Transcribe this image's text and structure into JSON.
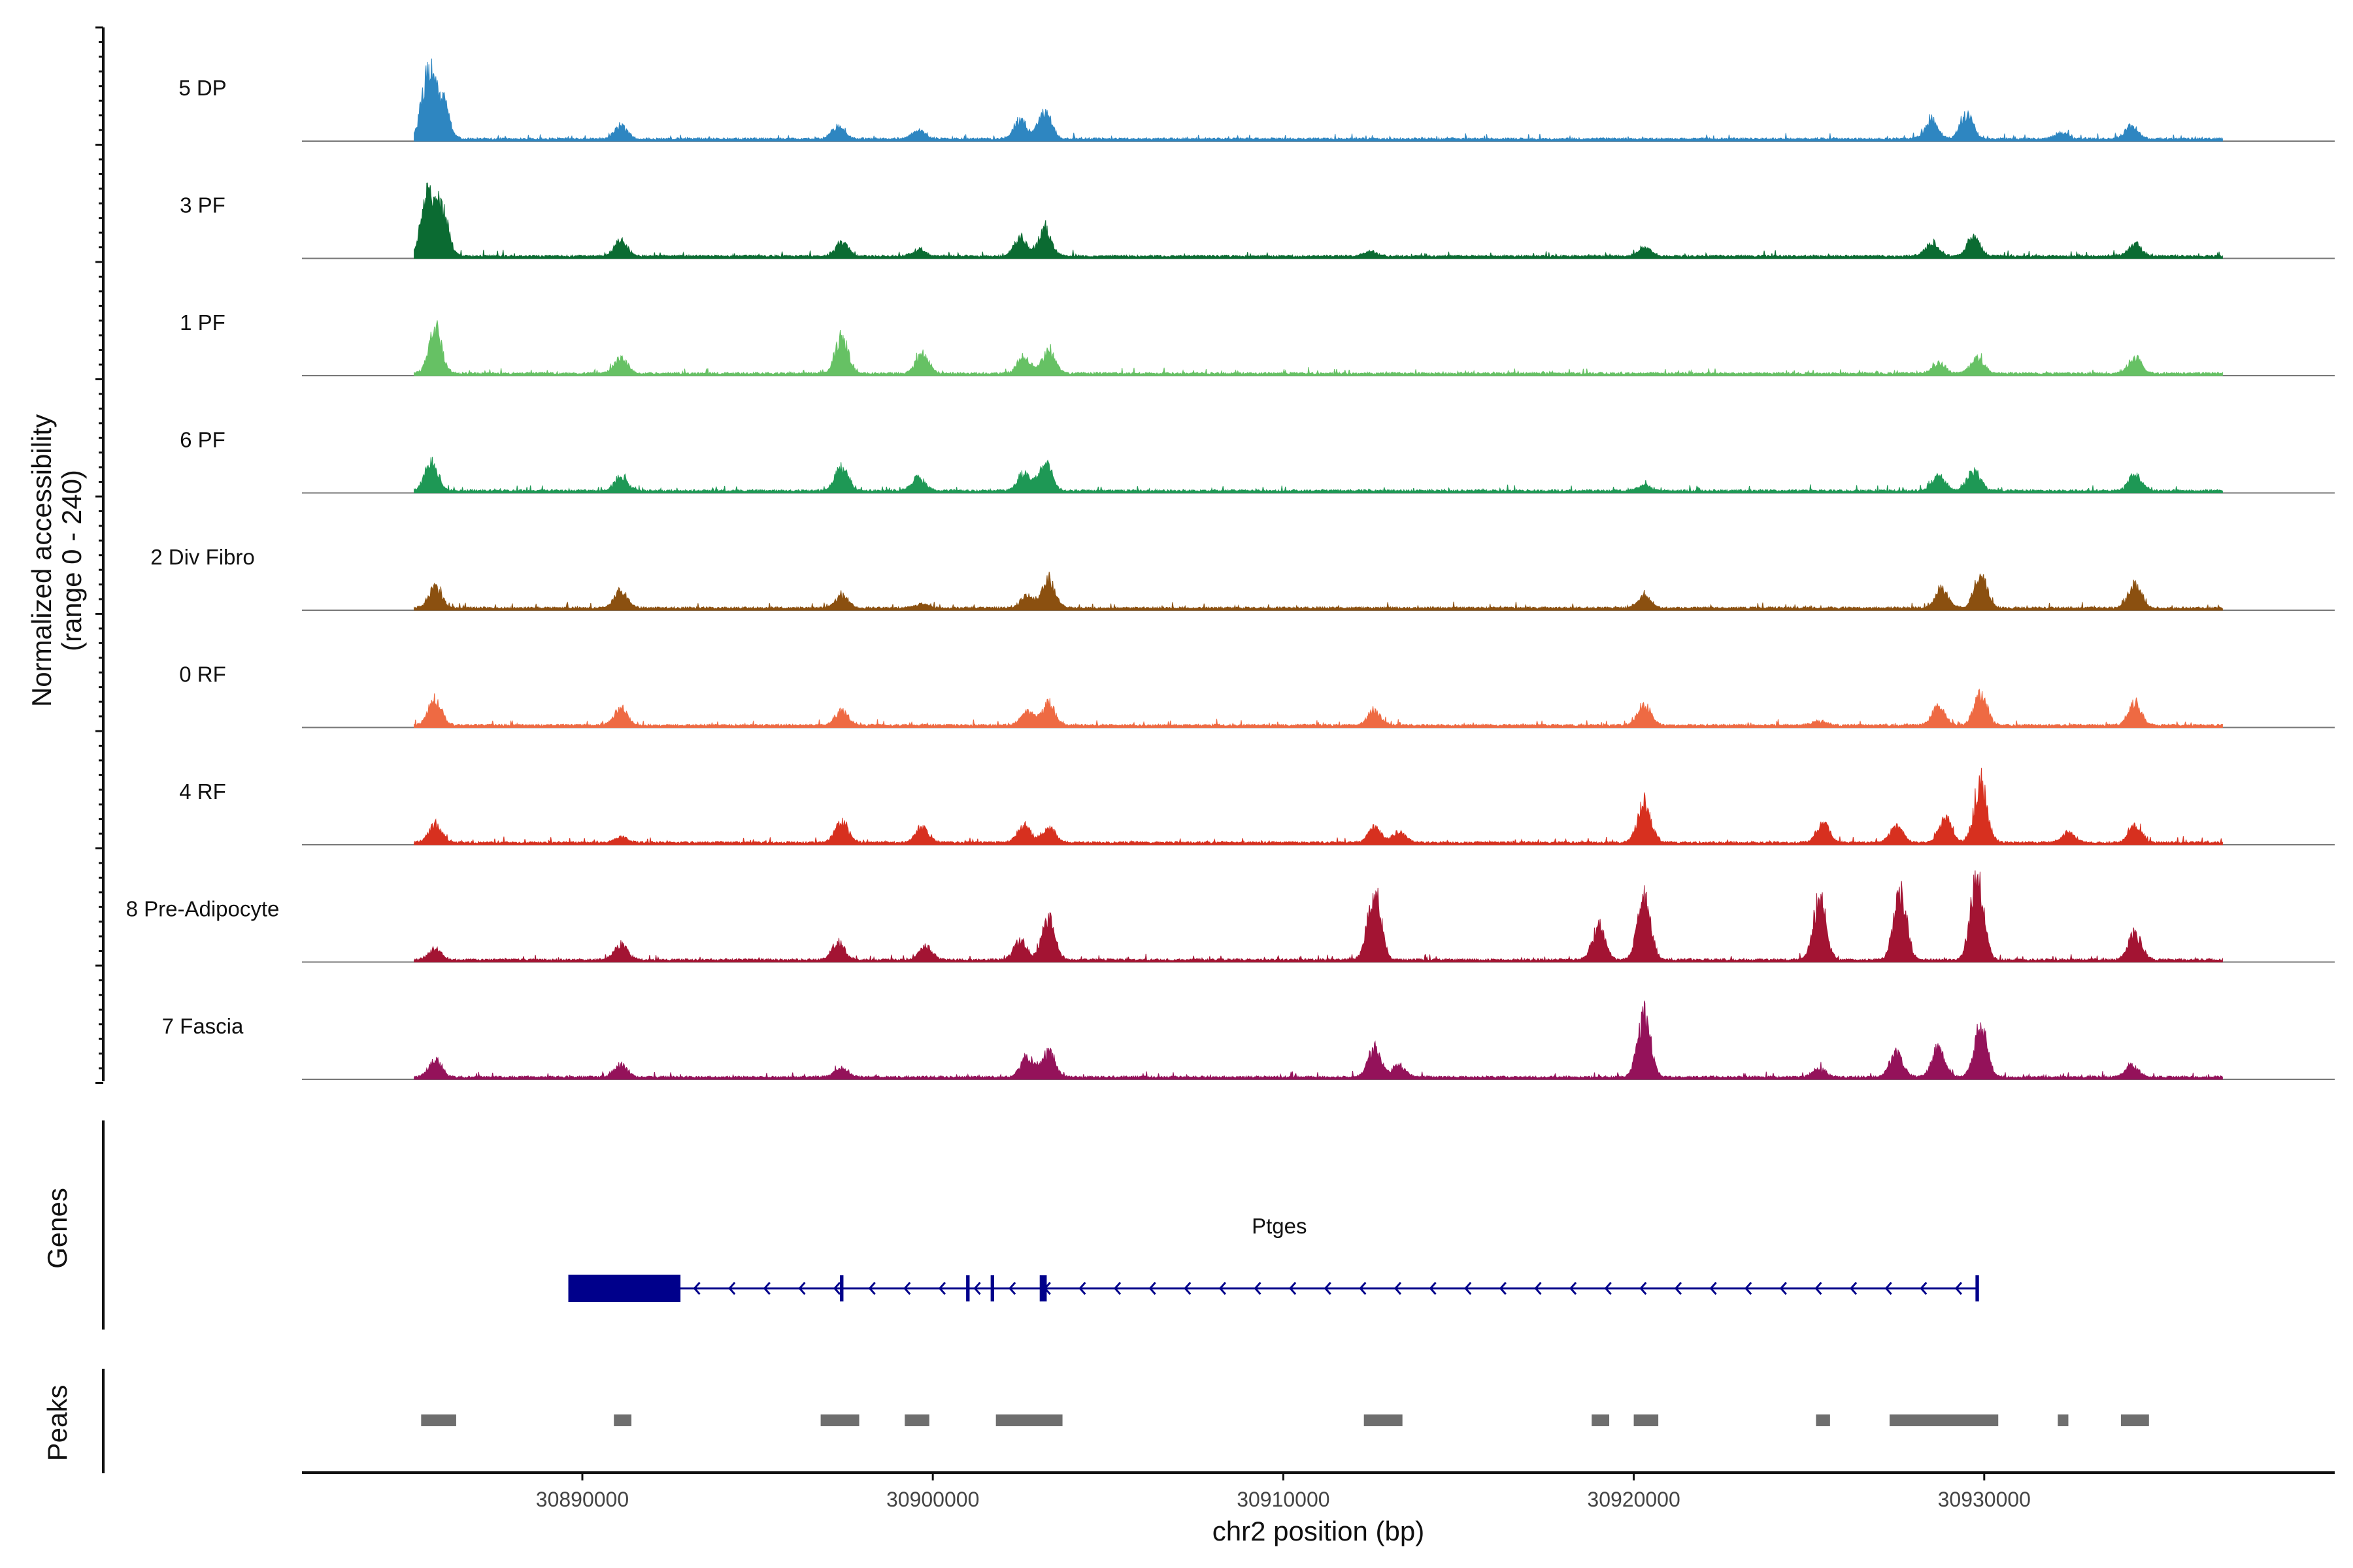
{
  "chart_data": {
    "type": "area",
    "title": "",
    "chromosome": "chr2",
    "xlabel": "chr2 position (bp)",
    "ylabel": "Normalized accessibility",
    "ylabel_range": "(range 0 - 240)",
    "xlim": [
      30882000,
      30940000
    ],
    "ylim": [
      0,
      240
    ],
    "xticks": [
      30890000,
      30900000,
      30910000,
      30920000,
      30930000
    ],
    "xtick_labels": [
      "30890000",
      "30900000",
      "30910000",
      "30920000",
      "30930000"
    ],
    "panel_labels": {
      "genes": "Genes",
      "peaks": "Peaks"
    },
    "tracks": [
      {
        "name": "5 DP",
        "color": "#2E86C1",
        "peaks": [
          [
            30885600,
            0.75
          ],
          [
            30886000,
            0.45
          ],
          [
            30891100,
            0.15
          ],
          [
            30897300,
            0.14
          ],
          [
            30899600,
            0.1
          ],
          [
            30902500,
            0.22
          ],
          [
            30903200,
            0.32
          ],
          [
            30928500,
            0.22
          ],
          [
            30929500,
            0.28
          ],
          [
            30932200,
            0.07
          ],
          [
            30934200,
            0.15
          ]
        ]
      },
      {
        "name": "3 PF",
        "color": "#0B6B32",
        "peaks": [
          [
            30885600,
            0.7
          ],
          [
            30886000,
            0.5
          ],
          [
            30891100,
            0.18
          ],
          [
            30897400,
            0.16
          ],
          [
            30899600,
            0.07
          ],
          [
            30902500,
            0.2
          ],
          [
            30903200,
            0.3
          ],
          [
            30912500,
            0.05
          ],
          [
            30920300,
            0.1
          ],
          [
            30928500,
            0.16
          ],
          [
            30929700,
            0.22
          ],
          [
            30934300,
            0.14
          ]
        ]
      },
      {
        "name": "1 PF",
        "color": "#66C164",
        "peaks": [
          [
            30885800,
            0.5
          ],
          [
            30891100,
            0.18
          ],
          [
            30897400,
            0.42
          ],
          [
            30899700,
            0.22
          ],
          [
            30902600,
            0.2
          ],
          [
            30903300,
            0.26
          ],
          [
            30928700,
            0.12
          ],
          [
            30929800,
            0.18
          ],
          [
            30934300,
            0.18
          ]
        ]
      },
      {
        "name": "6 PF",
        "color": "#1E9855",
        "peaks": [
          [
            30885700,
            0.34
          ],
          [
            30891100,
            0.16
          ],
          [
            30897400,
            0.28
          ],
          [
            30899600,
            0.16
          ],
          [
            30902600,
            0.2
          ],
          [
            30903200,
            0.34
          ],
          [
            30920300,
            0.06
          ],
          [
            30928700,
            0.18
          ],
          [
            30929700,
            0.24
          ],
          [
            30934300,
            0.18
          ]
        ]
      },
      {
        "name": "2 Div Fibro",
        "color": "#8B5010",
        "peaks": [
          [
            30885800,
            0.24
          ],
          [
            30891100,
            0.2
          ],
          [
            30897400,
            0.16
          ],
          [
            30899700,
            0.05
          ],
          [
            30902700,
            0.14
          ],
          [
            30903300,
            0.34
          ],
          [
            30920300,
            0.14
          ],
          [
            30928800,
            0.22
          ],
          [
            30929900,
            0.38
          ],
          [
            30934300,
            0.28
          ]
        ]
      },
      {
        "name": "0 RF",
        "color": "#EE6A43",
        "peaks": [
          [
            30885800,
            0.3
          ],
          [
            30891100,
            0.2
          ],
          [
            30897400,
            0.17
          ],
          [
            30902700,
            0.16
          ],
          [
            30903300,
            0.24
          ],
          [
            30912600,
            0.18
          ],
          [
            30920300,
            0.24
          ],
          [
            30925300,
            0.05
          ],
          [
            30928700,
            0.22
          ],
          [
            30929900,
            0.36
          ],
          [
            30934300,
            0.26
          ]
        ]
      },
      {
        "name": "4 RF",
        "color": "#D7301F",
        "peaks": [
          [
            30885800,
            0.22
          ],
          [
            30891100,
            0.07
          ],
          [
            30897400,
            0.24
          ],
          [
            30899700,
            0.18
          ],
          [
            30902600,
            0.2
          ],
          [
            30903300,
            0.17
          ],
          [
            30912600,
            0.18
          ],
          [
            30913300,
            0.13
          ],
          [
            30920300,
            0.48
          ],
          [
            30925400,
            0.22
          ],
          [
            30927500,
            0.18
          ],
          [
            30928900,
            0.3
          ],
          [
            30929900,
            0.7
          ],
          [
            30932400,
            0.12
          ],
          [
            30934300,
            0.2
          ]
        ]
      },
      {
        "name": "8 Pre-Adipocyte",
        "color": "#A31433",
        "peaks": [
          [
            30885800,
            0.12
          ],
          [
            30891100,
            0.18
          ],
          [
            30897300,
            0.2
          ],
          [
            30899800,
            0.15
          ],
          [
            30902500,
            0.22
          ],
          [
            30903300,
            0.48
          ],
          [
            30912600,
            0.8
          ],
          [
            30919000,
            0.4
          ],
          [
            30920300,
            0.74
          ],
          [
            30925300,
            0.7
          ],
          [
            30927600,
            0.75
          ],
          [
            30929800,
            0.96
          ],
          [
            30934300,
            0.3
          ]
        ]
      },
      {
        "name": "7 Fascia",
        "color": "#94125A",
        "peaks": [
          [
            30885800,
            0.2
          ],
          [
            30891100,
            0.14
          ],
          [
            30897400,
            0.1
          ],
          [
            30902700,
            0.24
          ],
          [
            30903300,
            0.3
          ],
          [
            30912600,
            0.34
          ],
          [
            30913300,
            0.14
          ],
          [
            30920300,
            0.72
          ],
          [
            30925300,
            0.1
          ],
          [
            30927500,
            0.28
          ],
          [
            30928700,
            0.34
          ],
          [
            30929900,
            0.6
          ],
          [
            30934200,
            0.14
          ]
        ]
      }
    ],
    "gene": {
      "name": "Ptges",
      "strand": "-",
      "start": 30889600,
      "end": 30929800,
      "color": "#00008B",
      "exons": [
        [
          30889600,
          30892800
        ],
        [
          30897350,
          30897450
        ],
        [
          30900950,
          30901050
        ],
        [
          30901650,
          30901750
        ],
        [
          30903050,
          30903250
        ],
        [
          30929750,
          30929850
        ]
      ]
    },
    "peak_regions": [
      [
        30885400,
        30886400
      ],
      [
        30890900,
        30891400
      ],
      [
        30896800,
        30897900
      ],
      [
        30899200,
        30899900
      ],
      [
        30901800,
        30903700
      ],
      [
        30912300,
        30913400
      ],
      [
        30918800,
        30919300
      ],
      [
        30920000,
        30920700
      ],
      [
        30925200,
        30925600
      ],
      [
        30927300,
        30930400
      ],
      [
        30932100,
        30932400
      ],
      [
        30933900,
        30934700
      ]
    ],
    "peak_color": "#6E6E6E"
  }
}
